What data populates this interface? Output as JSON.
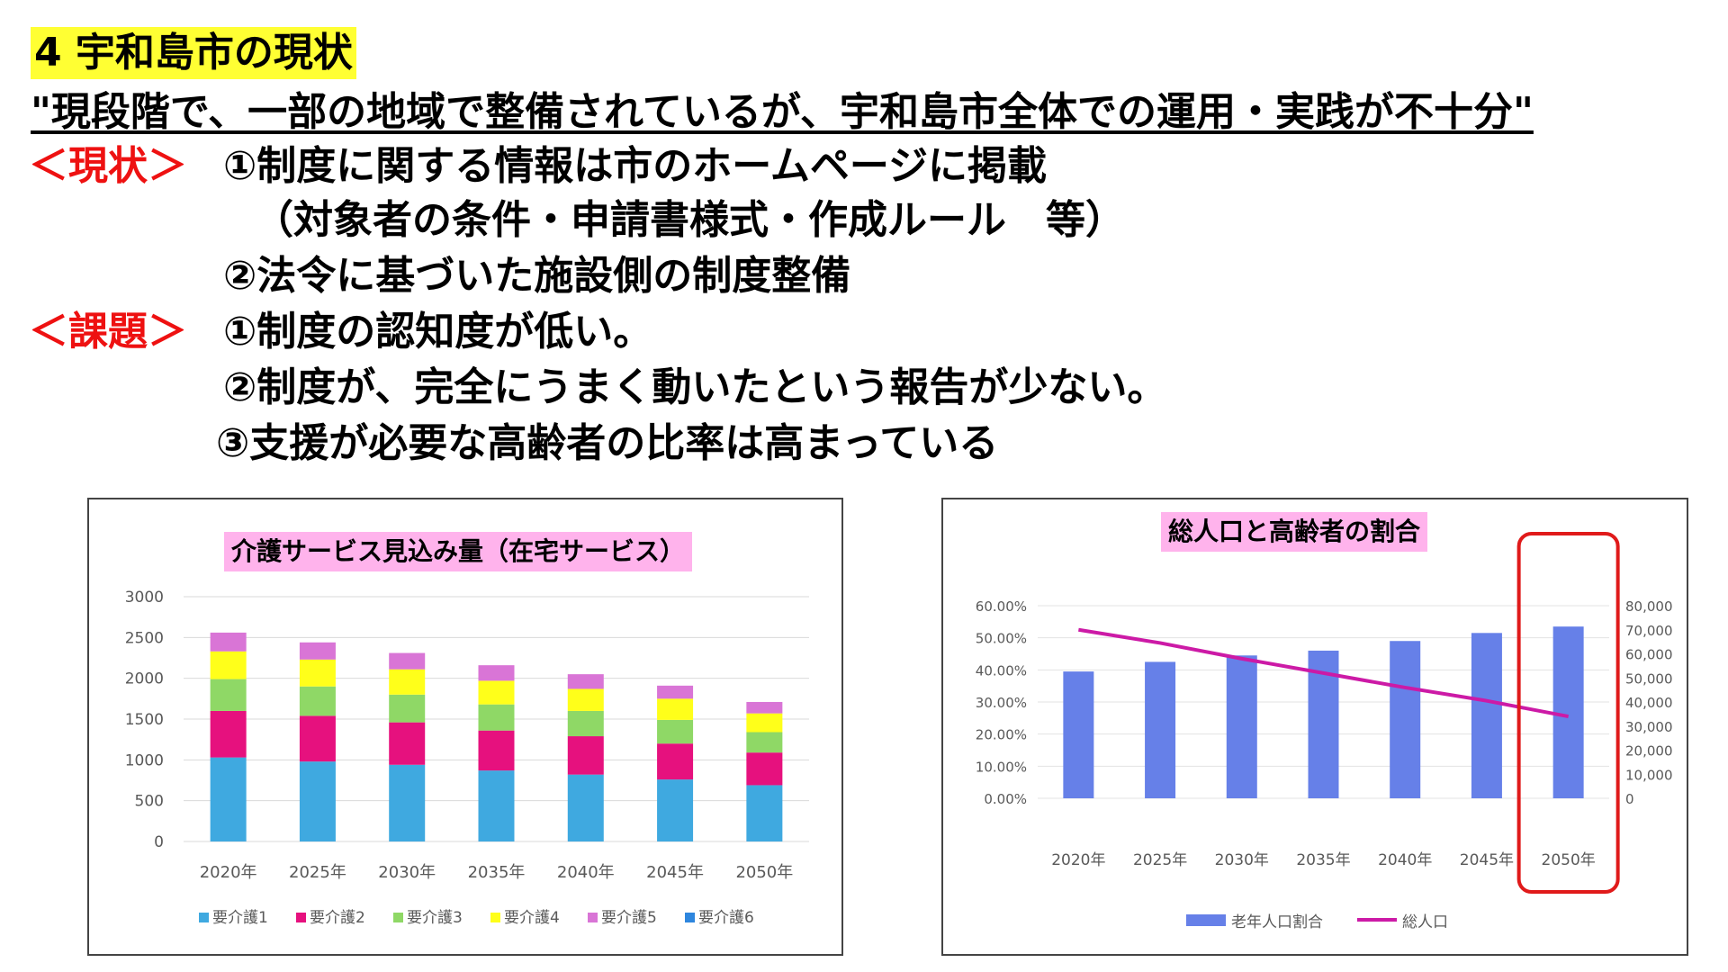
{
  "slide": {
    "title": "4  宇和島市の現状",
    "subtitle": "\"現段階で、一部の地域で整備されているが、宇和島市全体での運用・実践が不十分\"",
    "status_label": "＜現状＞",
    "status_lines": [
      "①制度に関する情報は市のホームページに掲載",
      "（対象者の条件・申請書様式・作成ルール　等）",
      "②法令に基づいた施設側の制度整備"
    ],
    "issue_label": "＜課題＞",
    "issue_lines": [
      "①制度の認知度が低い。",
      "②制度が、完全にうまく動いたという報告が少ない。",
      "③支援が必要な高齢者の比率は高まっている"
    ]
  },
  "chart_data": [
    {
      "type": "bar",
      "stacked": true,
      "title": "介護サービス見込み量（在宅サービス）",
      "categories": [
        "2020年",
        "2025年",
        "2030年",
        "2035年",
        "2040年",
        "2045年",
        "2050年"
      ],
      "ylim": [
        0,
        3000
      ],
      "yticks": [
        "3000",
        "2500",
        "2000",
        "1500",
        "1000",
        "500",
        "0"
      ],
      "grid": true,
      "legend": "bottom",
      "series": [
        {
          "name": "要介護1",
          "color": "#3fa9e0",
          "values": [
            1030,
            980,
            940,
            870,
            820,
            760,
            690
          ]
        },
        {
          "name": "要介護2",
          "color": "#e6117e",
          "values": [
            570,
            560,
            520,
            490,
            470,
            440,
            400
          ]
        },
        {
          "name": "要介護3",
          "color": "#8fd866",
          "values": [
            390,
            360,
            340,
            320,
            310,
            290,
            250
          ]
        },
        {
          "name": "要介護4",
          "color": "#ffff1a",
          "values": [
            340,
            330,
            310,
            290,
            270,
            260,
            230
          ]
        },
        {
          "name": "要介護5",
          "color": "#d975d6",
          "values": [
            230,
            210,
            200,
            190,
            180,
            160,
            140
          ]
        },
        {
          "name": "要介護6",
          "color": "#2e86de",
          "values": [
            0,
            0,
            0,
            0,
            0,
            0,
            0
          ]
        }
      ]
    },
    {
      "type": "bar+line",
      "title": "総人口と高齢者の割合",
      "categories": [
        "2020年",
        "2025年",
        "2030年",
        "2035年",
        "2040年",
        "2045年",
        "2050年"
      ],
      "y_left": {
        "range": [
          0,
          0.6
        ],
        "ticks": [
          "60.00%",
          "50.00%",
          "40.00%",
          "30.00%",
          "20.00%",
          "10.00%",
          "0.00%"
        ]
      },
      "y_right": {
        "range": [
          0,
          80000
        ],
        "ticks": [
          "80,000",
          "70,000",
          "60,000",
          "50,000",
          "40,000",
          "30,000",
          "20,000",
          "10,000",
          "0"
        ]
      },
      "legend": "bottom",
      "highlight_category": "2050年",
      "series": [
        {
          "name": "老年人口割合",
          "type": "bar",
          "axis": "left",
          "color": "#6680e8",
          "values": [
            0.395,
            0.425,
            0.445,
            0.46,
            0.49,
            0.515,
            0.535
          ]
        },
        {
          "name": "総人口",
          "type": "line",
          "axis": "right",
          "color": "#cc1aa6",
          "values": [
            70000,
            64500,
            58000,
            52000,
            46000,
            40500,
            34000
          ]
        }
      ]
    }
  ]
}
